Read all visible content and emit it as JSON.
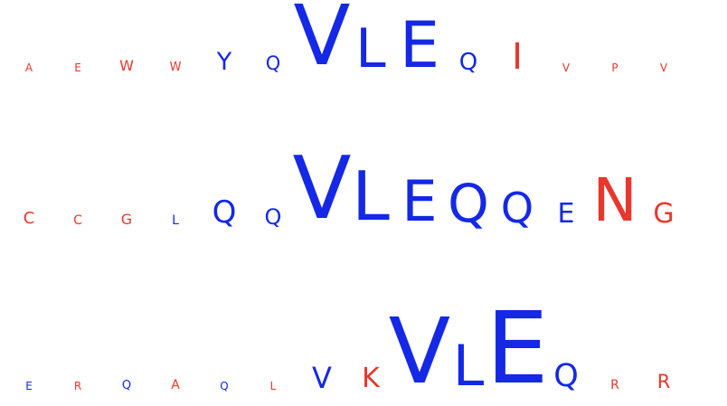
{
  "colors": {
    "hydrophobic": "#1428e6",
    "polar": "#e8372c"
  },
  "rows": [
    {
      "residues": [
        {
          "letter": "A",
          "color": "polar"
        },
        {
          "letter": "E",
          "color": "polar"
        },
        {
          "letter": "W",
          "color": "polar"
        },
        {
          "letter": "W",
          "color": "polar"
        },
        {
          "letter": "Y",
          "color": "hydrophobic"
        },
        {
          "letter": "Q",
          "color": "hydrophobic"
        },
        {
          "letter": "V",
          "color": "hydrophobic"
        },
        {
          "letter": "L",
          "color": "hydrophobic"
        },
        {
          "letter": "E",
          "color": "hydrophobic"
        },
        {
          "letter": "Q",
          "color": "hydrophobic"
        },
        {
          "letter": "I",
          "color": "polar"
        },
        {
          "letter": "V",
          "color": "polar"
        },
        {
          "letter": "P",
          "color": "polar"
        },
        {
          "letter": "V",
          "color": "polar"
        }
      ]
    },
    {
      "residues": [
        {
          "letter": "C",
          "color": "polar"
        },
        {
          "letter": "C",
          "color": "polar"
        },
        {
          "letter": "G",
          "color": "polar"
        },
        {
          "letter": "L",
          "color": "hydrophobic"
        },
        {
          "letter": "Q",
          "color": "hydrophobic"
        },
        {
          "letter": "Q",
          "color": "hydrophobic"
        },
        {
          "letter": "V",
          "color": "hydrophobic"
        },
        {
          "letter": "L",
          "color": "hydrophobic"
        },
        {
          "letter": "E",
          "color": "hydrophobic"
        },
        {
          "letter": "Q",
          "color": "hydrophobic"
        },
        {
          "letter": "Q",
          "color": "hydrophobic"
        },
        {
          "letter": "E",
          "color": "hydrophobic"
        },
        {
          "letter": "N",
          "color": "polar"
        },
        {
          "letter": "G",
          "color": "polar"
        }
      ]
    },
    {
      "residues": [
        {
          "letter": "E",
          "color": "hydrophobic"
        },
        {
          "letter": "R",
          "color": "polar"
        },
        {
          "letter": "Q",
          "color": "hydrophobic"
        },
        {
          "letter": "A",
          "color": "polar"
        },
        {
          "letter": "Q",
          "color": "hydrophobic"
        },
        {
          "letter": "L",
          "color": "polar"
        },
        {
          "letter": "V",
          "color": "hydrophobic"
        },
        {
          "letter": "K",
          "color": "polar"
        },
        {
          "letter": "V",
          "color": "hydrophobic"
        },
        {
          "letter": "L",
          "color": "hydrophobic"
        },
        {
          "letter": "E",
          "color": "hydrophobic"
        },
        {
          "letter": "Q",
          "color": "hydrophobic"
        },
        {
          "letter": "R",
          "color": "polar"
        },
        {
          "letter": "R",
          "color": "polar"
        }
      ]
    }
  ]
}
